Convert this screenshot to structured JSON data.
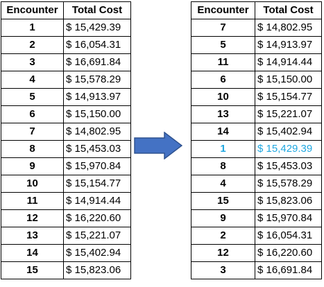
{
  "colors": {
    "highlight": "#1fa7e0",
    "arrow_fill": "#4472c4",
    "arrow_stroke": "#2f528f"
  },
  "arrow_icon": "arrow-right-icon",
  "left_table": {
    "headers": {
      "encounter": "Encounter",
      "total_cost": "Total Cost"
    },
    "rows": [
      {
        "encounter": "1",
        "cost": "$ 15,429.39"
      },
      {
        "encounter": "2",
        "cost": "$ 16,054.31"
      },
      {
        "encounter": "3",
        "cost": "$ 16,691.84"
      },
      {
        "encounter": "4",
        "cost": "$ 15,578.29"
      },
      {
        "encounter": "5",
        "cost": "$ 14,913.97"
      },
      {
        "encounter": "6",
        "cost": "$ 15,150.00"
      },
      {
        "encounter": "7",
        "cost": "$ 14,802.95"
      },
      {
        "encounter": "8",
        "cost": "$ 15,453.03"
      },
      {
        "encounter": "9",
        "cost": "$ 15,970.84"
      },
      {
        "encounter": "10",
        "cost": "$ 15,154.77"
      },
      {
        "encounter": "11",
        "cost": "$ 14,914.44"
      },
      {
        "encounter": "12",
        "cost": "$ 16,220.60"
      },
      {
        "encounter": "13",
        "cost": "$ 15,221.07"
      },
      {
        "encounter": "14",
        "cost": "$ 15,402.94"
      },
      {
        "encounter": "15",
        "cost": "$ 15,823.06"
      }
    ]
  },
  "right_table": {
    "headers": {
      "encounter": "Encounter",
      "total_cost": "Total Cost"
    },
    "rows": [
      {
        "encounter": "7",
        "cost": "$ 14,802.95"
      },
      {
        "encounter": "5",
        "cost": "$ 14,913.97"
      },
      {
        "encounter": "11",
        "cost": "$ 14,914.44"
      },
      {
        "encounter": "6",
        "cost": "$ 15,150.00"
      },
      {
        "encounter": "10",
        "cost": "$ 15,154.77"
      },
      {
        "encounter": "13",
        "cost": "$ 15,221.07"
      },
      {
        "encounter": "14",
        "cost": "$ 15,402.94"
      },
      {
        "encounter": "1",
        "cost": "$ 15,429.39",
        "highlighted": true
      },
      {
        "encounter": "8",
        "cost": "$ 15,453.03"
      },
      {
        "encounter": "4",
        "cost": "$ 15,578.29"
      },
      {
        "encounter": "15",
        "cost": "$ 15,823.06"
      },
      {
        "encounter": "9",
        "cost": "$ 15,970.84"
      },
      {
        "encounter": "2",
        "cost": "$ 16,054.31"
      },
      {
        "encounter": "12",
        "cost": "$ 16,220.60"
      },
      {
        "encounter": "3",
        "cost": "$ 16,691.84"
      }
    ]
  }
}
